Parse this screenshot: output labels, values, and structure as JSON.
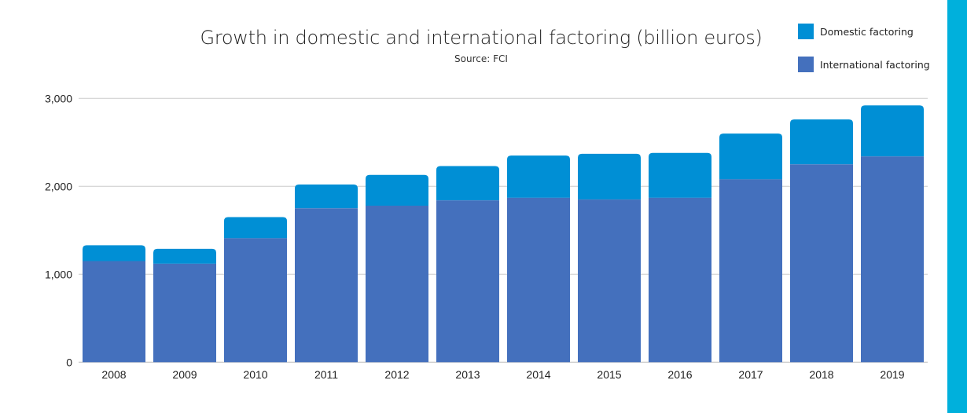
{
  "chart_data": {
    "type": "bar",
    "stacked": true,
    "title": "Growth in domestic and international factoring (billion euros)",
    "subtitle": "Source: FCI",
    "xlabel": "",
    "ylabel": "",
    "ylim": [
      0,
      3000
    ],
    "yticks": [
      0,
      1000,
      2000,
      3000
    ],
    "ytick_labels": [
      "0",
      "1,000",
      "2,000",
      "3,000"
    ],
    "grid": true,
    "legend_position": "top-right",
    "categories": [
      "2008",
      "2009",
      "2010",
      "2011",
      "2012",
      "2013",
      "2014",
      "2015",
      "2016",
      "2017",
      "2018",
      "2019"
    ],
    "series": [
      {
        "name": "International factoring",
        "color": "#4470bd",
        "values": [
          1150,
          1120,
          1410,
          1750,
          1780,
          1840,
          1870,
          1850,
          1870,
          2080,
          2250,
          2340
        ]
      },
      {
        "name": "Domestic factoring",
        "color": "#008fd5",
        "values": [
          180,
          170,
          240,
          270,
          350,
          390,
          480,
          520,
          510,
          520,
          510,
          580
        ]
      }
    ],
    "legend": [
      "Domestic factoring",
      "International factoring"
    ]
  },
  "accent_strip_color": "#00b0dc"
}
